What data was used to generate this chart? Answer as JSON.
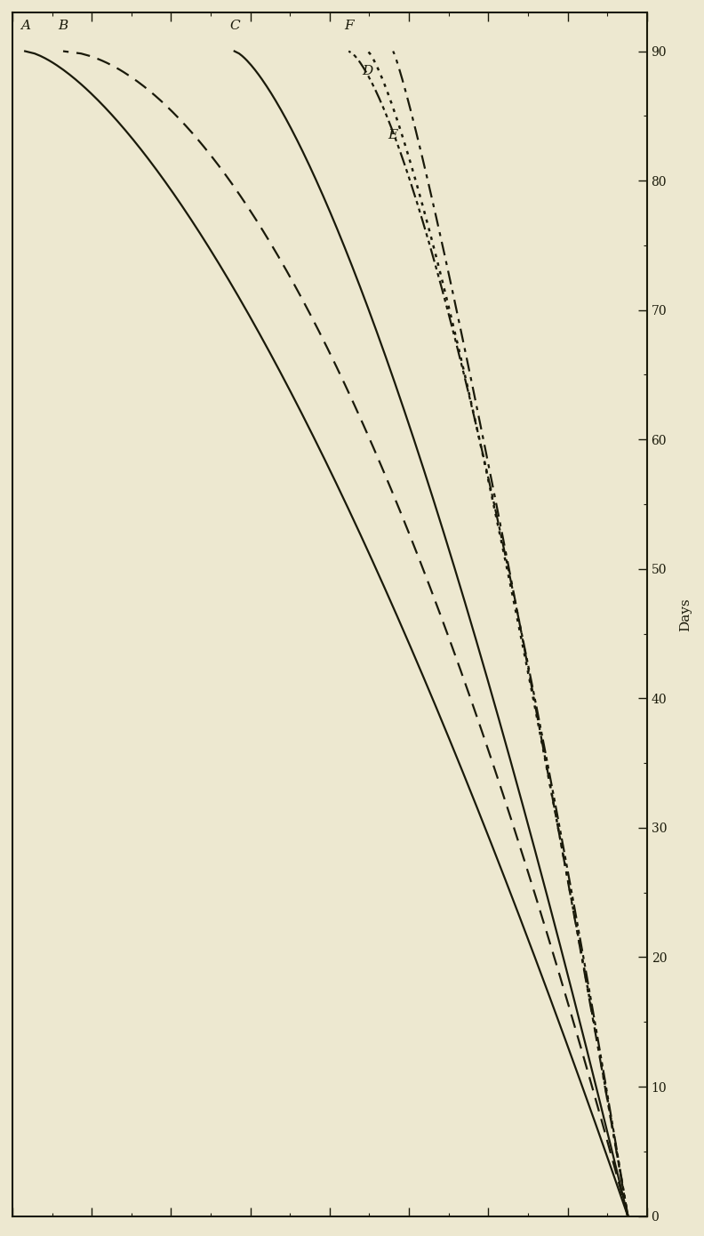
{
  "background_color": "#ede8d0",
  "axis_color": "#1a1a0a",
  "y_label": "Days",
  "y_ticks": [
    0,
    10,
    20,
    30,
    40,
    50,
    60,
    70,
    80,
    90
  ],
  "x_ticks_count": 9,
  "ylim": [
    0,
    93
  ],
  "xlim": [
    0,
    1.0
  ],
  "lines": [
    {
      "label": "A",
      "color": "#1a1a0a",
      "linewidth": 1.6,
      "linestyle": "solid",
      "x_top": 0.02,
      "curve_power": 1.5,
      "x_converge": 0.97
    },
    {
      "label": "B",
      "color": "#1a1a0a",
      "linewidth": 1.6,
      "linestyle": "dashed",
      "x_top": 0.08,
      "curve_power": 1.8,
      "x_converge": 0.97
    },
    {
      "label": "C",
      "color": "#1a1a0a",
      "linewidth": 1.6,
      "linestyle": "solid",
      "x_top": 0.35,
      "curve_power": 1.4,
      "x_converge": 0.97
    },
    {
      "label": "D",
      "color": "#1a1a0a",
      "linewidth": 1.8,
      "linestyle": "dotted",
      "x_top": 0.56,
      "curve_power": 1.3,
      "x_converge": 0.97
    },
    {
      "label": "E",
      "color": "#1a1a0a",
      "linewidth": 1.6,
      "linestyle": "dashdot",
      "x_top": 0.6,
      "curve_power": 1.15,
      "x_converge": 0.97
    },
    {
      "label": "F",
      "color": "#1a1a0a",
      "linewidth": 1.6,
      "linestyle": "dashdotdot",
      "x_top": 0.53,
      "curve_power": 1.45,
      "x_converge": 0.97
    }
  ],
  "label_font_size": 11,
  "tick_font_size": 10
}
